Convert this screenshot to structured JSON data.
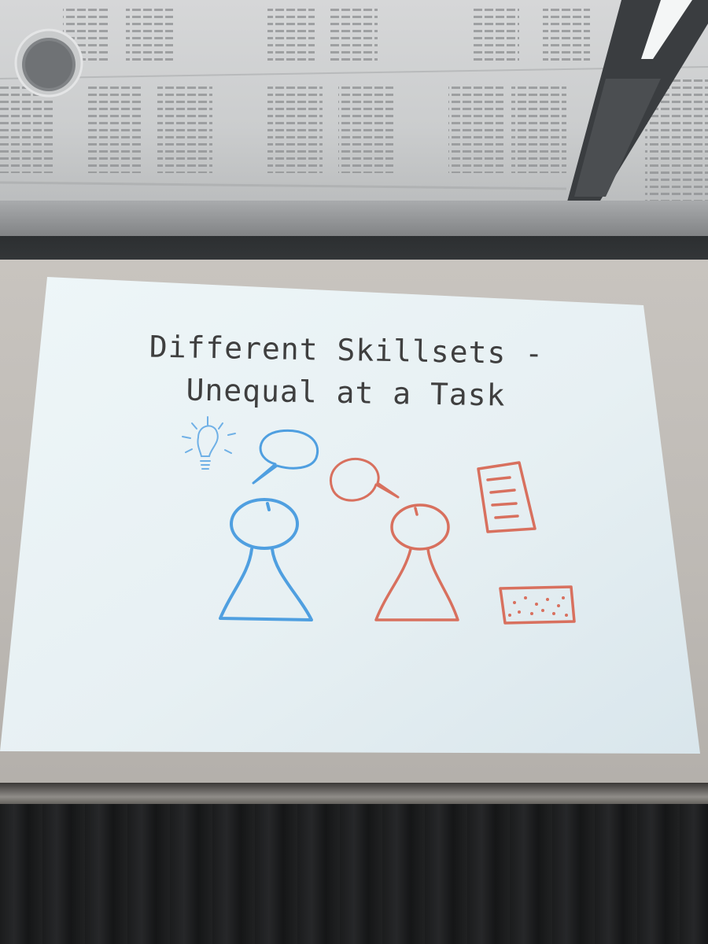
{
  "slide": {
    "title_line1": "Different Skillsets -",
    "title_line2": "Unequal at a Task"
  },
  "colors": {
    "slide_background": "#e8f1f4",
    "title_text": "#3f3f3f",
    "blue_figure": "#4f9fe0",
    "red_figure": "#d8705e",
    "lightbulb": "#6fb0e6"
  },
  "icons": {
    "lightbulb": "lightbulb-icon",
    "blue_speech_bubble": "speech-bubble-icon",
    "red_speech_bubble": "speech-bubble-icon",
    "blue_person": "person-icon",
    "red_person": "person-icon",
    "document": "document-icon",
    "sponge": "sponge-icon",
    "ceiling_speaker": "speaker-icon",
    "ceiling_light": "light-icon"
  }
}
